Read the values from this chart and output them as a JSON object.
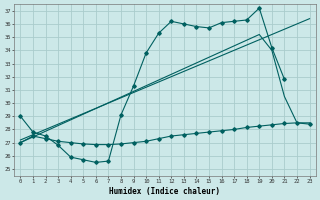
{
  "title": "",
  "xlabel": "Humidex (Indice chaleur)",
  "background_color": "#cce8e8",
  "grid_color": "#aacccc",
  "line_color": "#006060",
  "xlim": [
    -0.5,
    23.5
  ],
  "ylim": [
    24.5,
    37.5
  ],
  "xticks": [
    0,
    1,
    2,
    3,
    4,
    5,
    6,
    7,
    8,
    9,
    10,
    11,
    12,
    13,
    14,
    15,
    16,
    17,
    18,
    19,
    20,
    21,
    22,
    23
  ],
  "yticks": [
    25,
    26,
    27,
    28,
    29,
    30,
    31,
    32,
    33,
    34,
    35,
    36,
    37
  ],
  "line1_x": [
    0,
    1,
    2,
    3,
    4,
    5,
    6,
    7,
    8,
    9,
    10,
    11,
    12,
    13,
    14,
    15,
    16,
    17,
    18,
    19,
    20,
    21
  ],
  "line1_y": [
    29.0,
    27.8,
    27.5,
    26.8,
    25.9,
    25.7,
    25.5,
    25.6,
    29.1,
    31.3,
    33.8,
    35.3,
    36.2,
    36.0,
    35.8,
    35.7,
    36.1,
    36.2,
    36.3,
    37.2,
    34.2,
    31.8
  ],
  "line2_x": [
    0,
    1,
    2,
    3,
    4,
    5,
    6,
    7,
    8,
    9,
    10,
    11,
    12,
    13,
    14,
    15,
    16,
    17,
    18,
    19,
    20,
    21,
    22,
    23
  ],
  "line2_y": [
    27.0,
    27.5,
    27.3,
    27.1,
    27.0,
    26.9,
    26.85,
    26.85,
    26.9,
    27.0,
    27.1,
    27.3,
    27.5,
    27.6,
    27.7,
    27.8,
    27.9,
    28.0,
    28.15,
    28.25,
    28.35,
    28.45,
    28.5,
    28.4
  ],
  "line3_x": [
    0,
    23
  ],
  "line3_y": [
    27.2,
    36.4
  ],
  "line4_x": [
    0,
    19,
    20,
    21,
    22,
    23
  ],
  "line4_y": [
    27.0,
    35.2,
    34.0,
    30.5,
    28.5,
    28.5
  ]
}
